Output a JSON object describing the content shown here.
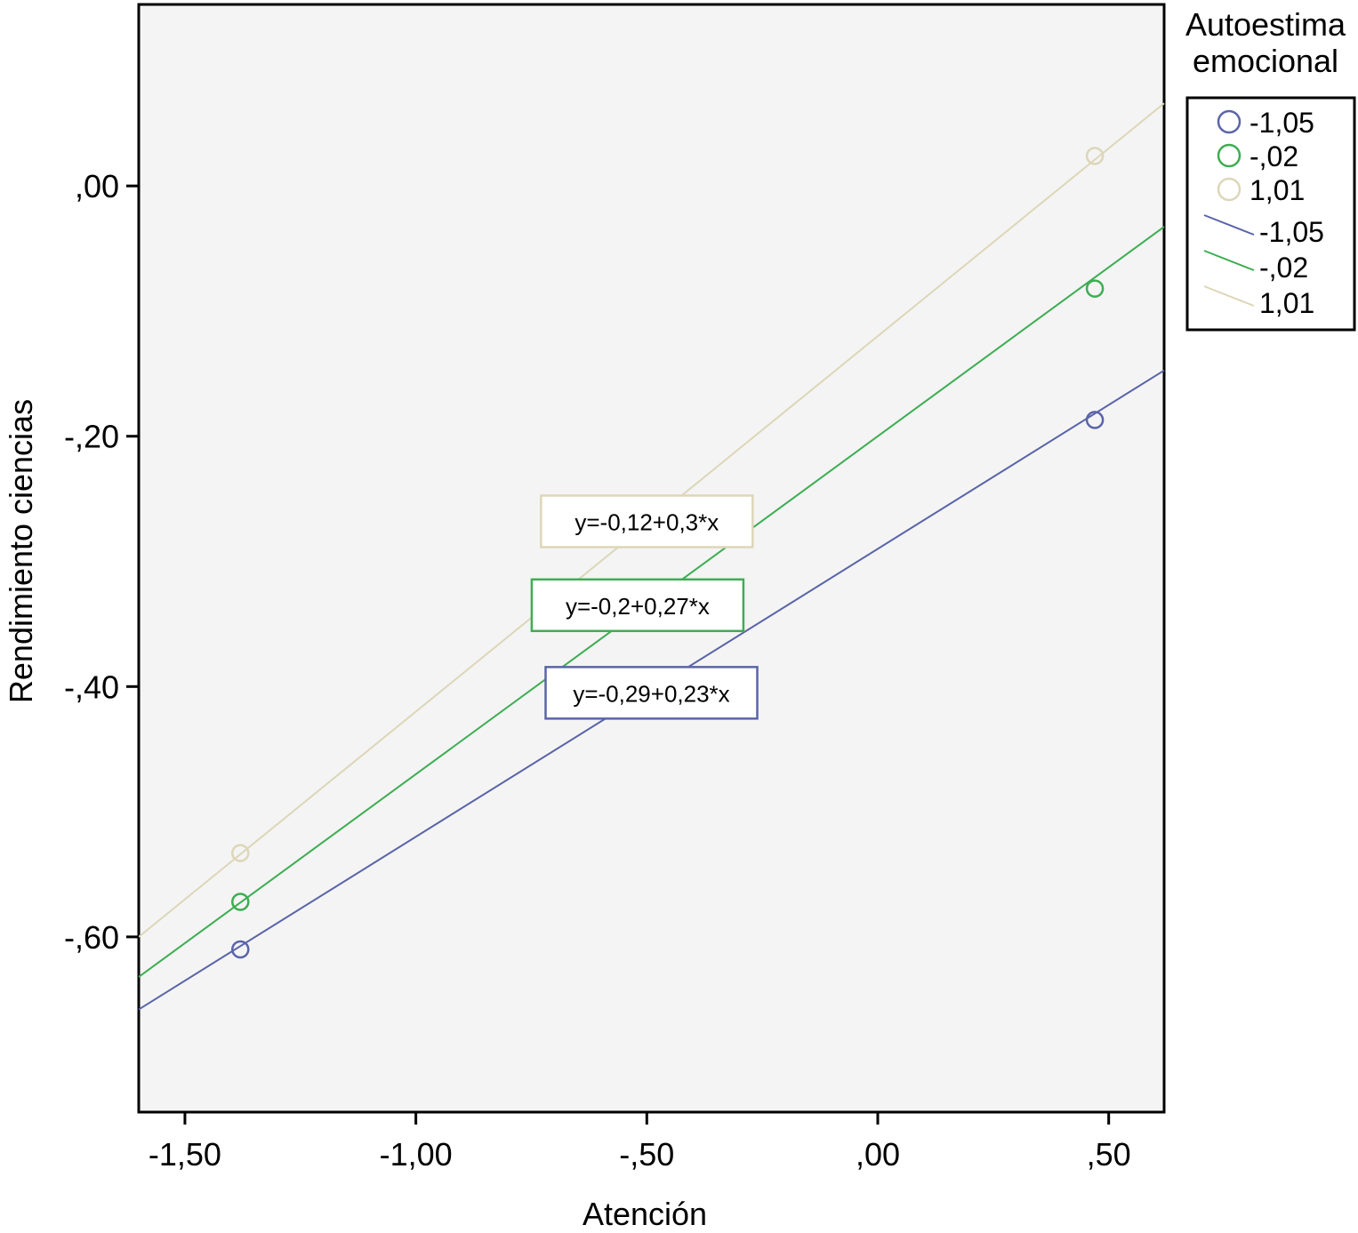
{
  "chart_data": {
    "type": "scatter",
    "xlabel": "Atención",
    "ylabel": "Rendimiento ciencias",
    "xlim": [
      -1.6,
      0.62
    ],
    "ylim": [
      -0.74,
      0.145
    ],
    "x_ticks": [
      {
        "value": -1.5,
        "label": "-1,50"
      },
      {
        "value": -1.0,
        "label": "-1,00"
      },
      {
        "value": -0.5,
        "label": "-,50"
      },
      {
        "value": 0.0,
        "label": ",00"
      },
      {
        "value": 0.5,
        "label": ",50"
      }
    ],
    "y_ticks": [
      {
        "value": 0.0,
        "label": ",00"
      },
      {
        "value": -0.2,
        "label": "-,20"
      },
      {
        "value": -0.4,
        "label": "-,40"
      },
      {
        "value": -0.6,
        "label": "-,60"
      }
    ],
    "grid": false,
    "legend": {
      "title_lines": [
        "Autoestima",
        "emocional"
      ],
      "placement": "right",
      "point_entries": [
        "-1,05",
        "-,02",
        "1,01"
      ],
      "line_entries": [
        "-1,05",
        "-,02",
        "1,01"
      ]
    },
    "series": [
      {
        "name": "-1,05",
        "color": "#5a64a8",
        "points": [
          [
            -1.38,
            -0.61
          ],
          [
            0.47,
            -0.187
          ]
        ],
        "fit": {
          "intercept": -0.29,
          "slope": 0.23
        },
        "equation": "y=-0,29+0,23*x",
        "label_pos": [
          -0.49,
          -0.405
        ]
      },
      {
        "name": "-,02",
        "color": "#3dad52",
        "points": [
          [
            -1.38,
            -0.572
          ],
          [
            0.47,
            -0.082
          ]
        ],
        "fit": {
          "intercept": -0.2,
          "slope": 0.27
        },
        "equation": "y=-0,2+0,27*x",
        "label_pos": [
          -0.52,
          -0.335
        ]
      },
      {
        "name": "1,01",
        "color": "#ddd6b8",
        "points": [
          [
            -1.38,
            -0.533
          ],
          [
            0.47,
            0.024
          ]
        ],
        "fit": {
          "intercept": -0.12,
          "slope": 0.3
        },
        "equation": "y=-0,12+0,3*x",
        "label_pos": [
          -0.5,
          -0.268
        ]
      }
    ]
  }
}
